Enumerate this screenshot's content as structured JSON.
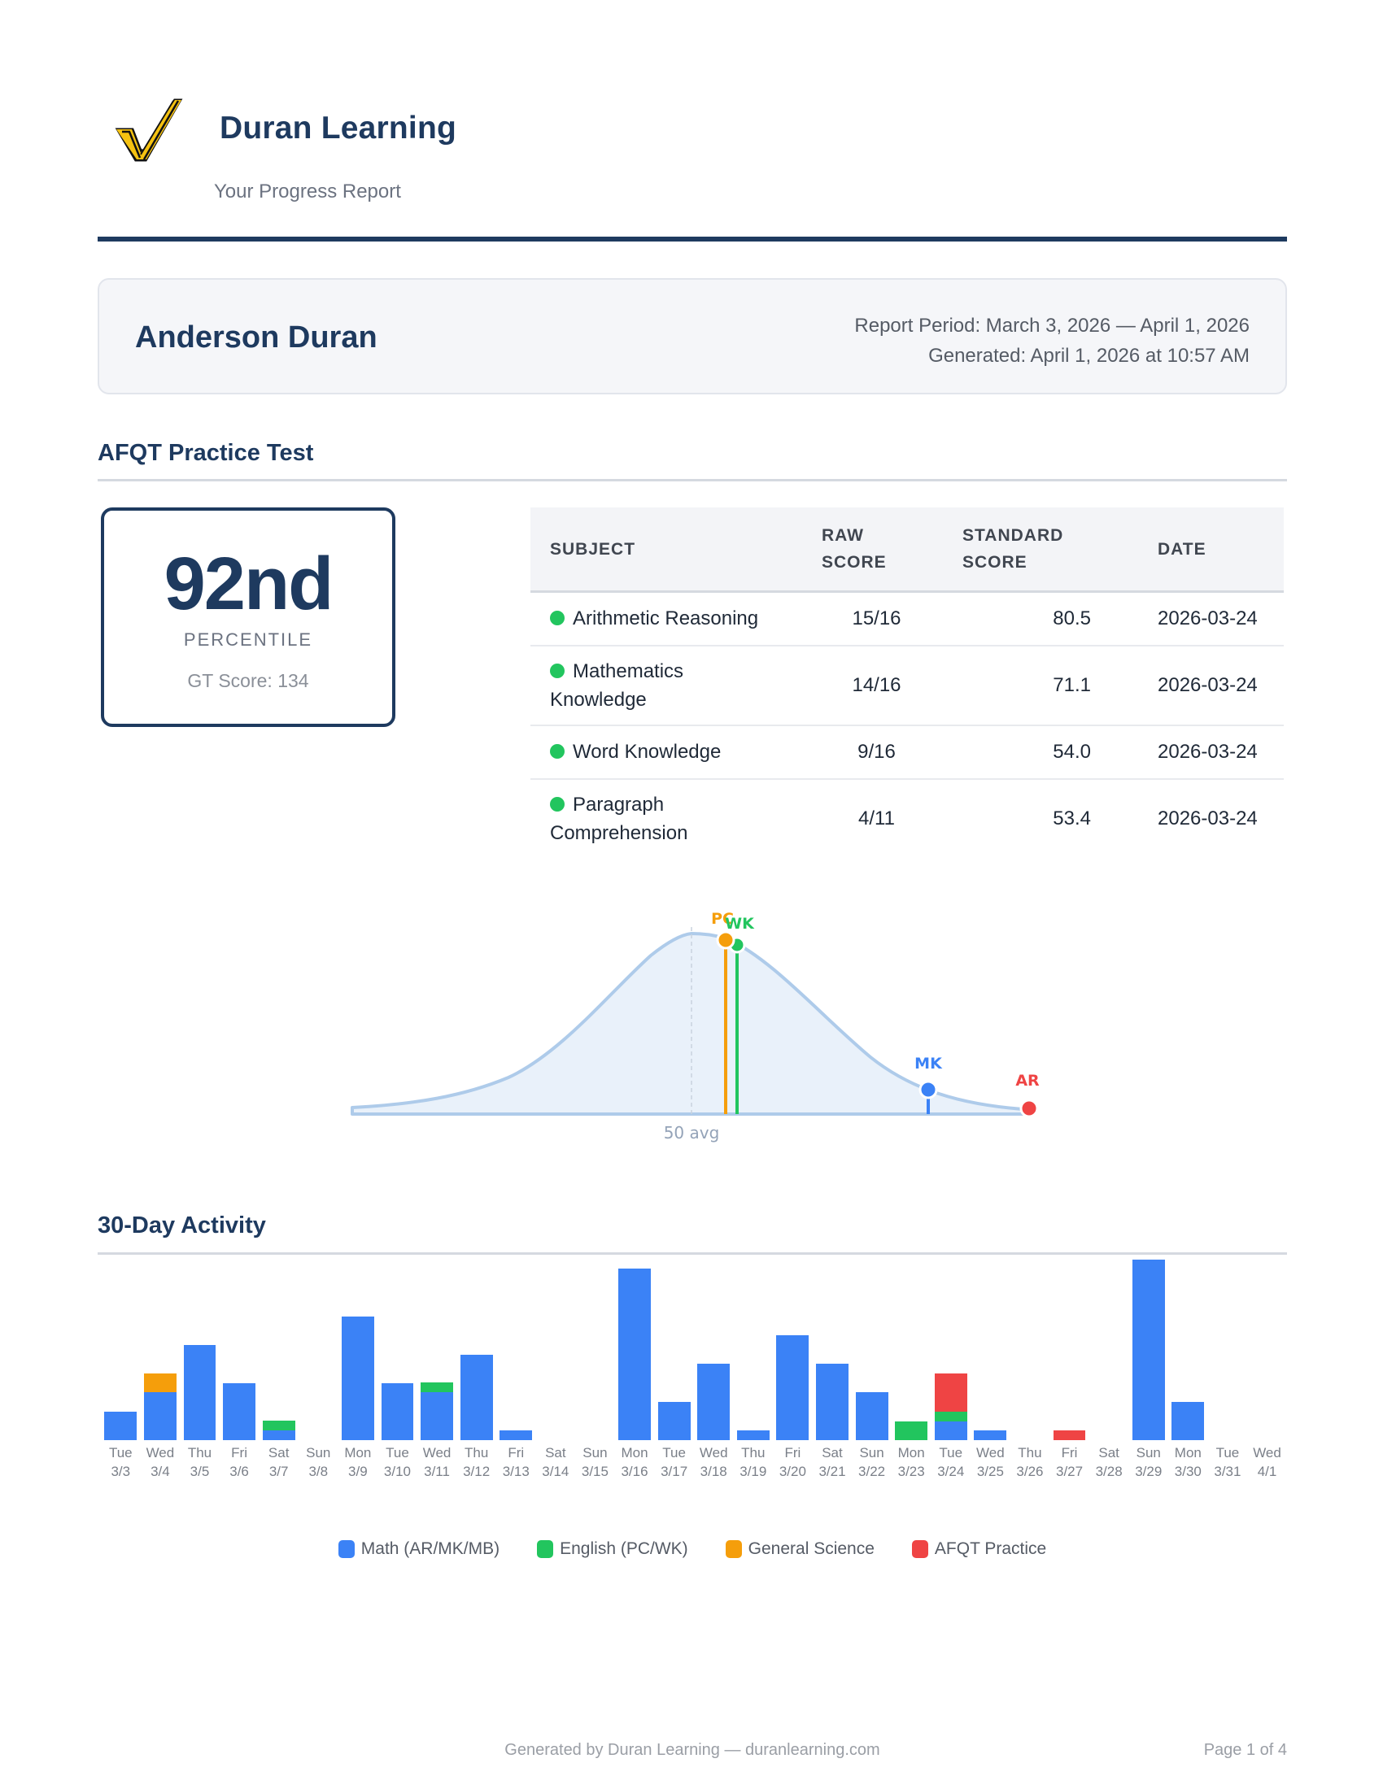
{
  "brand": {
    "name": "Duran Learning",
    "subtitle": "Your Progress Report",
    "logo_icon": "gold-checkmark-logo-icon"
  },
  "student": {
    "name": "Anderson Duran",
    "report_period": "Report Period: March 3, 2026 — April 1, 2026",
    "generated": "Generated: April 1, 2026 at 10:57 AM"
  },
  "afqt": {
    "title": "AFQT Practice Test",
    "percentile": "92nd",
    "percentile_label": "PERCENTILE",
    "gt_score": "GT Score: 134",
    "table": {
      "headers": [
        "SUBJECT",
        "RAW SCORE",
        "STANDARD SCORE",
        "DATE"
      ],
      "rows": [
        {
          "subject": "Arithmetic Reasoning",
          "raw": "15/16",
          "standard": "80.5",
          "date": "2026-03-24",
          "status_color": "#22c55e"
        },
        {
          "subject": "Mathematics Knowledge",
          "raw": "14/16",
          "standard": "71.1",
          "date": "2026-03-24",
          "status_color": "#22c55e"
        },
        {
          "subject": "Word Knowledge",
          "raw": "9/16",
          "standard": "54.0",
          "date": "2026-03-24",
          "status_color": "#22c55e"
        },
        {
          "subject": "Paragraph Comprehension",
          "raw": "4/11",
          "standard": "53.4",
          "date": "2026-03-24",
          "status_color": "#22c55e"
        }
      ]
    },
    "distribution": {
      "avg_label": "50 avg",
      "markers": [
        {
          "label": "PC",
          "score": 53.4,
          "color": "#f59e0b"
        },
        {
          "label": "WK",
          "score": 54.0,
          "color": "#22c55e"
        },
        {
          "label": "MK",
          "score": 71.1,
          "color": "#3b82f6"
        },
        {
          "label": "AR",
          "score": 80.5,
          "color": "#ef4444"
        }
      ]
    }
  },
  "activity": {
    "title": "30-Day Activity",
    "legend": [
      {
        "label": "Math (AR/MK/MB)",
        "color": "#3b82f6"
      },
      {
        "label": "English (PC/WK)",
        "color": "#22c55e"
      },
      {
        "label": "General Science",
        "color": "#f59e0b"
      },
      {
        "label": "AFQT Practice",
        "color": "#ef4444"
      }
    ]
  },
  "chart_data": [
    {
      "type": "area",
      "title": "Standard score distribution",
      "xlabel": "",
      "ylabel": "",
      "annotations": [
        "50 avg"
      ],
      "x_center": 50,
      "markers": [
        {
          "label": "PC",
          "x": 53.4
        },
        {
          "label": "WK",
          "x": 54.0
        },
        {
          "label": "MK",
          "x": 71.1
        },
        {
          "label": "AR",
          "x": 80.5
        }
      ],
      "grid": false
    },
    {
      "type": "bar",
      "title": "30-Day Activity",
      "stacked": true,
      "categories": [
        "Tue 3/3",
        "Wed 3/4",
        "Thu 3/5",
        "Fri 3/6",
        "Sat 3/7",
        "Sun 3/8",
        "Mon 3/9",
        "Tue 3/10",
        "Wed 3/11",
        "Thu 3/12",
        "Fri 3/13",
        "Sat 3/14",
        "Sun 3/15",
        "Mon 3/16",
        "Tue 3/17",
        "Wed 3/18",
        "Thu 3/19",
        "Fri 3/20",
        "Sat 3/21",
        "Sun 3/22",
        "Mon 3/23",
        "Tue 3/24",
        "Wed 3/25",
        "Thu 3/26",
        "Fri 3/27",
        "Sat 3/28",
        "Sun 3/29",
        "Mon 3/30",
        "Tue 3/31",
        "Wed 4/1"
      ],
      "series": [
        {
          "name": "Math (AR/MK/MB)",
          "color": "#3b82f6",
          "values": [
            3,
            5,
            10,
            6,
            1,
            0,
            13,
            6,
            5,
            9,
            1,
            0,
            0,
            18,
            4,
            8,
            1,
            11,
            8,
            5,
            0,
            2,
            1,
            0,
            0,
            0,
            19,
            4,
            0,
            0
          ]
        },
        {
          "name": "English (PC/WK)",
          "color": "#22c55e",
          "values": [
            0,
            0,
            0,
            0,
            1,
            0,
            0,
            0,
            1,
            0,
            0,
            0,
            0,
            0,
            0,
            0,
            0,
            0,
            0,
            0,
            2,
            1,
            0,
            0,
            0,
            0,
            0,
            0,
            0,
            0
          ]
        },
        {
          "name": "General Science",
          "color": "#f59e0b",
          "values": [
            0,
            2,
            0,
            0,
            0,
            0,
            0,
            0,
            0,
            0,
            0,
            0,
            0,
            0,
            0,
            0,
            0,
            0,
            0,
            0,
            0,
            0,
            0,
            0,
            0,
            0,
            0,
            0,
            0,
            0
          ]
        },
        {
          "name": "AFQT Practice",
          "color": "#ef4444",
          "values": [
            0,
            0,
            0,
            0,
            0,
            0,
            0,
            0,
            0,
            0,
            0,
            0,
            0,
            0,
            0,
            0,
            0,
            0,
            0,
            0,
            0,
            4,
            0,
            0,
            1,
            0,
            0,
            0,
            0,
            0
          ]
        }
      ],
      "xlabel": "",
      "ylabel": "",
      "ylim": [
        0,
        19
      ],
      "grid": false,
      "legend_position": "bottom"
    }
  ],
  "days": [
    {
      "dow": "Tue",
      "date": "3/3"
    },
    {
      "dow": "Wed",
      "date": "3/4"
    },
    {
      "dow": "Thu",
      "date": "3/5"
    },
    {
      "dow": "Fri",
      "date": "3/6"
    },
    {
      "dow": "Sat",
      "date": "3/7"
    },
    {
      "dow": "Sun",
      "date": "3/8"
    },
    {
      "dow": "Mon",
      "date": "3/9"
    },
    {
      "dow": "Tue",
      "date": "3/10"
    },
    {
      "dow": "Wed",
      "date": "3/11"
    },
    {
      "dow": "Thu",
      "date": "3/12"
    },
    {
      "dow": "Fri",
      "date": "3/13"
    },
    {
      "dow": "Sat",
      "date": "3/14"
    },
    {
      "dow": "Sun",
      "date": "3/15"
    },
    {
      "dow": "Mon",
      "date": "3/16"
    },
    {
      "dow": "Tue",
      "date": "3/17"
    },
    {
      "dow": "Wed",
      "date": "3/18"
    },
    {
      "dow": "Thu",
      "date": "3/19"
    },
    {
      "dow": "Fri",
      "date": "3/20"
    },
    {
      "dow": "Sat",
      "date": "3/21"
    },
    {
      "dow": "Sun",
      "date": "3/22"
    },
    {
      "dow": "Mon",
      "date": "3/23"
    },
    {
      "dow": "Tue",
      "date": "3/24"
    },
    {
      "dow": "Wed",
      "date": "3/25"
    },
    {
      "dow": "Thu",
      "date": "3/26"
    },
    {
      "dow": "Fri",
      "date": "3/27"
    },
    {
      "dow": "Sat",
      "date": "3/28"
    },
    {
      "dow": "Sun",
      "date": "3/29"
    },
    {
      "dow": "Mon",
      "date": "3/30"
    },
    {
      "dow": "Tue",
      "date": "3/31"
    },
    {
      "dow": "Wed",
      "date": "4/1"
    }
  ],
  "footer": {
    "generated_by": "Generated by Duran Learning — duranlearning.com",
    "page": "Page 1 of 4"
  }
}
